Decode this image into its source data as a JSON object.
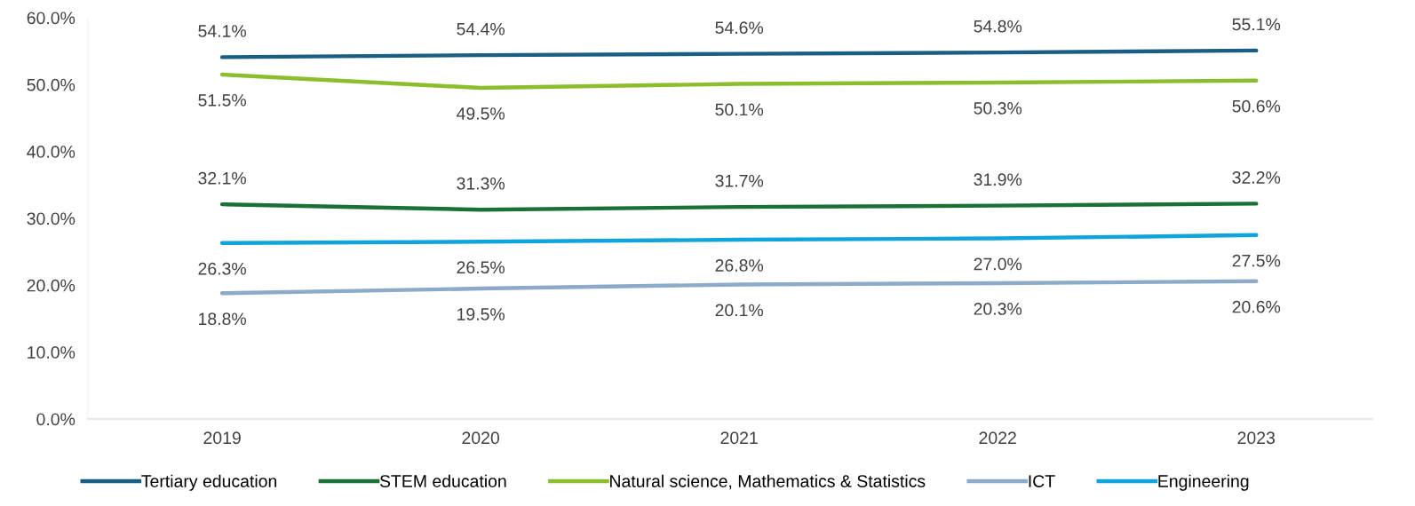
{
  "chart_data": {
    "type": "line",
    "categories": [
      "2019",
      "2020",
      "2021",
      "2022",
      "2023"
    ],
    "series": [
      {
        "name": "Tertiary education",
        "color": "#1a5e84",
        "values": [
          54.1,
          54.4,
          54.6,
          54.8,
          55.1
        ],
        "value_labels": [
          "54.1%",
          "54.4%",
          "54.6%",
          "54.8%",
          "55.1%"
        ]
      },
      {
        "name": "STEM education",
        "color": "#1a7136",
        "values": [
          32.1,
          31.3,
          31.7,
          31.9,
          32.2
        ],
        "value_labels": [
          "32.1%",
          "31.3%",
          "31.7%",
          "31.9%",
          "32.2%"
        ]
      },
      {
        "name": "Natural science, Mathematics & Statistics",
        "color": "#8cbd2c",
        "values": [
          51.5,
          49.5,
          50.1,
          50.3,
          50.6
        ],
        "value_labels": [
          "51.5%",
          "49.5%",
          "50.1%",
          "50.3%",
          "50.6%"
        ]
      },
      {
        "name": "ICT",
        "color": "#8eaac9",
        "values": [
          18.8,
          19.5,
          20.1,
          20.3,
          20.6
        ],
        "value_labels": [
          "18.8%",
          "19.5%",
          "20.1%",
          "20.3%",
          "20.6%"
        ]
      },
      {
        "name": "Engineering",
        "color": "#10a4dc",
        "values": [
          26.3,
          26.5,
          26.8,
          27.0,
          27.5
        ],
        "value_labels": [
          "26.3%",
          "26.5%",
          "26.8%",
          "27.0%",
          "27.5%"
        ]
      }
    ],
    "ylim": [
      0,
      60
    ],
    "yticks": [
      {
        "value": 0,
        "label": "0.0%"
      },
      {
        "value": 10,
        "label": "10.0%"
      },
      {
        "value": 20,
        "label": "20.0%"
      },
      {
        "value": 30,
        "label": "30.0%"
      },
      {
        "value": 40,
        "label": "40.0%"
      },
      {
        "value": 50,
        "label": "50.0%"
      },
      {
        "value": 60,
        "label": "60.0%"
      }
    ],
    "grid": false,
    "legend": "bottom",
    "marker": "none",
    "line_style": "solid"
  }
}
